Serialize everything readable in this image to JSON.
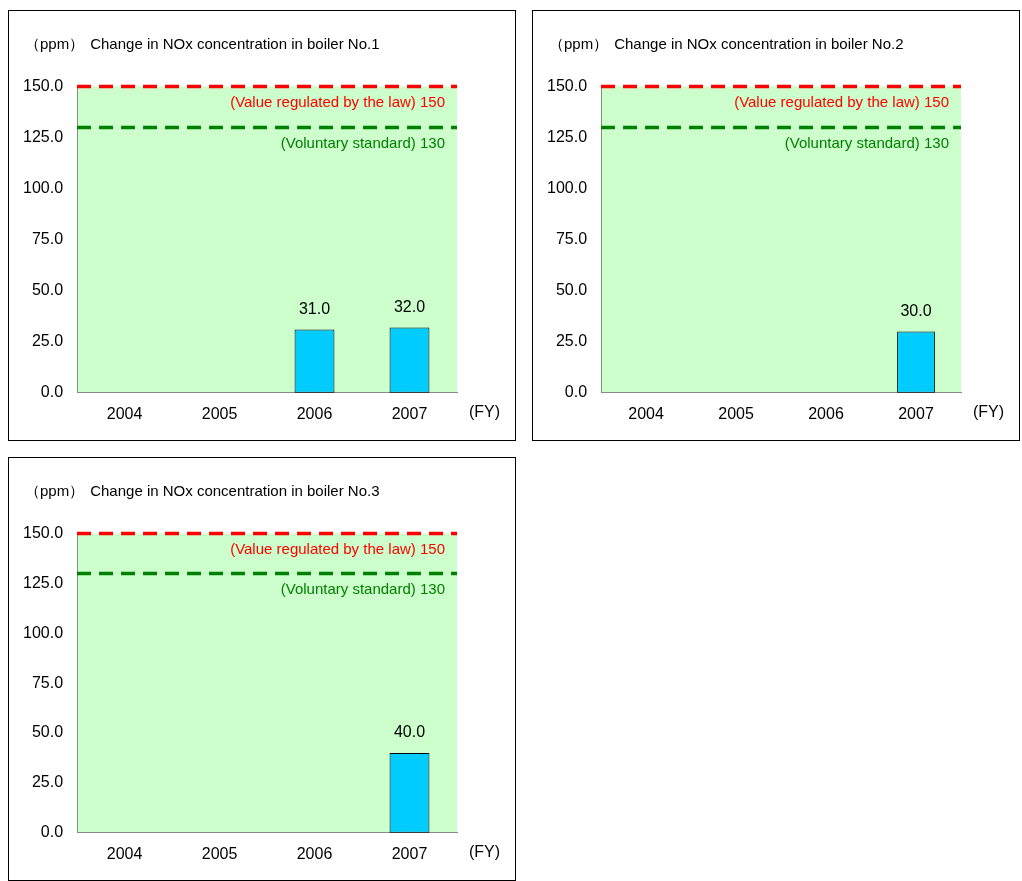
{
  "chart_data": [
    {
      "type": "bar",
      "title": "Change in NOx concentration in boiler No.1",
      "ylabel": "（ppm）",
      "xlabel": "(FY)",
      "categories": [
        "2004",
        "2005",
        "2006",
        "2007"
      ],
      "values": [
        null,
        null,
        31.0,
        32.0
      ],
      "value_labels": [
        null,
        null,
        "31.0",
        "32.0"
      ],
      "color": "#00ccff",
      "ylim": [
        0,
        150
      ],
      "yticks": [
        {
          "value": 0,
          "label": "0.0"
        },
        {
          "value": 25,
          "label": "25.0"
        },
        {
          "value": 50,
          "label": "50.0"
        },
        {
          "value": 75,
          "label": "75.0"
        },
        {
          "value": 100,
          "label": "100.0"
        },
        {
          "value": 125,
          "label": "125.0"
        },
        {
          "value": 150,
          "label": "150.0"
        }
      ],
      "grid": false,
      "legend": false,
      "ref_lines": [
        {
          "axis": "y",
          "value": 150,
          "label": "(Value regulated by the law) 150",
          "color": "#ff0000",
          "line_style": "dashed"
        },
        {
          "axis": "y",
          "value": 130,
          "label": "(Voluntary standard) 130",
          "color": "#008000",
          "line_style": "dashed"
        }
      ]
    },
    {
      "type": "bar",
      "title": "Change in NOx concentration in boiler No.2",
      "ylabel": "（ppm）",
      "xlabel": "(FY)",
      "categories": [
        "2004",
        "2005",
        "2006",
        "2007"
      ],
      "values": [
        null,
        null,
        null,
        30.0
      ],
      "value_labels": [
        null,
        null,
        null,
        "30.0"
      ],
      "color": "#00ccff",
      "ylim": [
        0,
        150
      ],
      "yticks": [
        {
          "value": 0,
          "label": "0.0"
        },
        {
          "value": 25,
          "label": "25.0"
        },
        {
          "value": 50,
          "label": "50.0"
        },
        {
          "value": 75,
          "label": "75.0"
        },
        {
          "value": 100,
          "label": "100.0"
        },
        {
          "value": 125,
          "label": "125.0"
        },
        {
          "value": 150,
          "label": "150.0"
        }
      ],
      "grid": false,
      "legend": false,
      "ref_lines": [
        {
          "axis": "y",
          "value": 150,
          "label": "(Value regulated by the law) 150",
          "color": "#ff0000",
          "line_style": "dashed"
        },
        {
          "axis": "y",
          "value": 130,
          "label": "(Voluntary standard) 130",
          "color": "#008000",
          "line_style": "dashed"
        }
      ]
    },
    {
      "type": "bar",
      "title": "Change in NOx concentration in boiler No.3",
      "ylabel": "（ppm）",
      "xlabel": "(FY)",
      "categories": [
        "2004",
        "2005",
        "2006",
        "2007"
      ],
      "values": [
        null,
        null,
        null,
        40.0
      ],
      "value_labels": [
        null,
        null,
        null,
        "40.0"
      ],
      "color": "#00ccff",
      "ylim": [
        0,
        150
      ],
      "yticks": [
        {
          "value": 0,
          "label": "0.0"
        },
        {
          "value": 25,
          "label": "25.0"
        },
        {
          "value": 50,
          "label": "50.0"
        },
        {
          "value": 75,
          "label": "75.0"
        },
        {
          "value": 100,
          "label": "100.0"
        },
        {
          "value": 125,
          "label": "125.0"
        },
        {
          "value": 150,
          "label": "150.0"
        }
      ],
      "grid": false,
      "legend": false,
      "ref_lines": [
        {
          "axis": "y",
          "value": 150,
          "label": "(Value regulated by the law) 150",
          "color": "#ff0000",
          "line_style": "dashed"
        },
        {
          "axis": "y",
          "value": 130,
          "label": "(Voluntary standard) 130",
          "color": "#008000",
          "line_style": "dashed"
        }
      ]
    }
  ]
}
